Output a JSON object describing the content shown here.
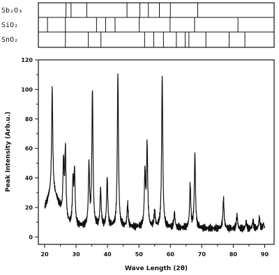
{
  "chart_data": {
    "type": "line",
    "xlabel": "Wave Length (2θ)",
    "ylabel": "Peak Intensity (Arb.u.)",
    "xlim": [
      18,
      93
    ],
    "ylim": [
      -5,
      120
    ],
    "x_ticks": [
      "20",
      "30",
      "40",
      "50",
      "60",
      "70",
      "80",
      "90"
    ],
    "y_ticks": [
      "0",
      "20",
      "40",
      "60",
      "80",
      "100",
      "120"
    ],
    "grid": false,
    "reference_patterns": [
      {
        "name": "Sb₂O₃",
        "lines": [
          26.8,
          28.4,
          33.4,
          46.2,
          50.3,
          53.0,
          56.5,
          60.0,
          68.7
        ]
      },
      {
        "name": "SiO₂",
        "lines": [
          20.9,
          26.6,
          36.5,
          39.4,
          42.4,
          50.1,
          59.9,
          67.7,
          81.5
        ]
      },
      {
        "name": "SnO₂",
        "lines": [
          26.6,
          33.9,
          37.9,
          51.8,
          54.7,
          57.8,
          61.9,
          64.7,
          65.9,
          71.3,
          78.7,
          83.7
        ]
      }
    ],
    "series": [
      {
        "color": "#111111",
        "peaks": [
          {
            "x": 22.4,
            "y": 100
          },
          {
            "x": 26.0,
            "y": 50
          },
          {
            "x": 26.6,
            "y": 58
          },
          {
            "x": 29.0,
            "y": 35
          },
          {
            "x": 29.5,
            "y": 43
          },
          {
            "x": 34.1,
            "y": 48
          },
          {
            "x": 35.2,
            "y": 99
          },
          {
            "x": 37.8,
            "y": 32
          },
          {
            "x": 39.9,
            "y": 40
          },
          {
            "x": 43.3,
            "y": 110
          },
          {
            "x": 46.4,
            "y": 22
          },
          {
            "x": 51.9,
            "y": 43
          },
          {
            "x": 52.6,
            "y": 62
          },
          {
            "x": 55.0,
            "y": 17
          },
          {
            "x": 57.4,
            "y": 109
          },
          {
            "x": 61.3,
            "y": 16
          },
          {
            "x": 66.3,
            "y": 35
          },
          {
            "x": 67.8,
            "y": 56
          },
          {
            "x": 76.9,
            "y": 26
          },
          {
            "x": 81.2,
            "y": 15
          },
          {
            "x": 84.1,
            "y": 10
          },
          {
            "x": 86.3,
            "y": 11
          },
          {
            "x": 88.3,
            "y": 13
          },
          {
            "x": 89.6,
            "y": 9
          }
        ]
      }
    ]
  }
}
